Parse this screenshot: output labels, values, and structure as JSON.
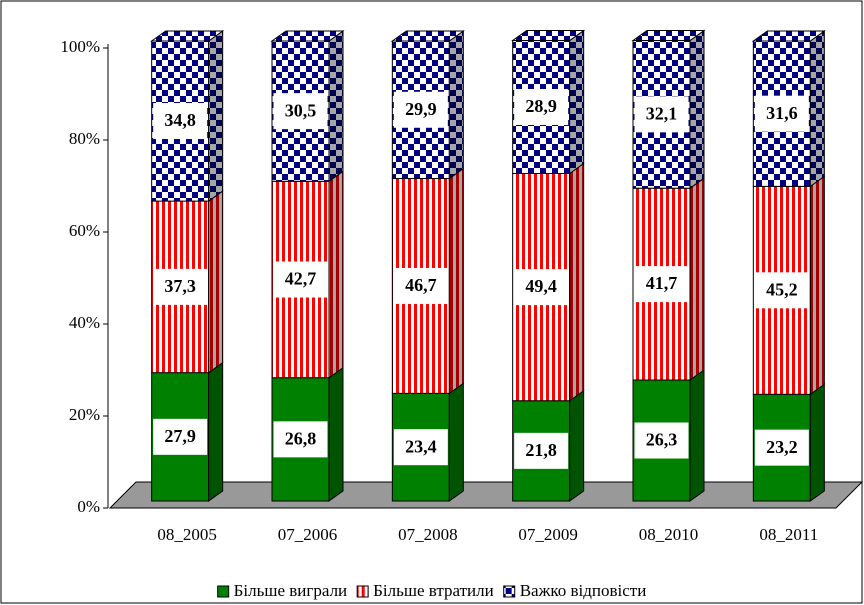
{
  "chart_data": {
    "type": "stacked-bar-3d",
    "categories": [
      "08_2005",
      "07_2006",
      "07_2008",
      "07_2009",
      "08_2010",
      "08_2011"
    ],
    "series": [
      {
        "name": "Більше виграли",
        "color": "#008000",
        "pattern": "solid",
        "values": [
          27.9,
          26.8,
          23.4,
          21.8,
          26.3,
          23.2
        ],
        "value_labels": [
          "27,9",
          "26,8",
          "23,4",
          "21,8",
          "26,3",
          "23,2"
        ]
      },
      {
        "name": "Більше втратили",
        "color": "#ff0000",
        "pattern": "vertical-stripes",
        "values": [
          37.3,
          42.7,
          46.7,
          49.4,
          41.7,
          45.2
        ],
        "value_labels": [
          "37,3",
          "42,7",
          "46,7",
          "49,4",
          "41,7",
          "45,2"
        ]
      },
      {
        "name": "Важко відповісти",
        "color": "#000080",
        "pattern": "checkerboard",
        "values": [
          34.8,
          30.5,
          29.9,
          28.9,
          32.1,
          31.6
        ],
        "value_labels": [
          "34,8",
          "30,5",
          "29,9",
          "28,9",
          "32,1",
          "31,6"
        ]
      }
    ],
    "ylim": [
      0,
      100
    ],
    "yticks": [
      {
        "value": 0,
        "label": "0%"
      },
      {
        "value": 20,
        "label": "20%"
      },
      {
        "value": 40,
        "label": "40%"
      },
      {
        "value": 60,
        "label": "60%"
      },
      {
        "value": 80,
        "label": "80%"
      },
      {
        "value": 100,
        "label": "100%"
      }
    ],
    "legend": "bottom"
  }
}
